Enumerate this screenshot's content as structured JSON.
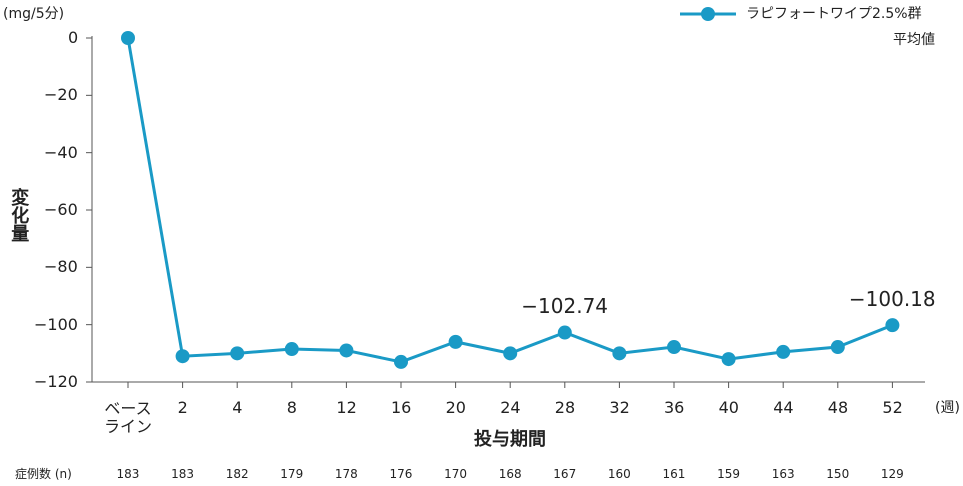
{
  "chart_data": {
    "type": "line",
    "y_unit": "(mg/5分)",
    "y_label": "変化量",
    "x_label": "投与期間",
    "x_unit": "(週)",
    "categories": [
      "ベース\nライン",
      "2",
      "4",
      "8",
      "12",
      "16",
      "20",
      "24",
      "28",
      "32",
      "36",
      "40",
      "44",
      "48",
      "52"
    ],
    "series": [
      {
        "name": "ラピフォートワイプ2.5%群",
        "color": "#1a9ac6",
        "values": [
          0,
          -111,
          -110,
          -108.5,
          -109,
          -113,
          -106,
          -110,
          -102.74,
          -110,
          -107.8,
          -112,
          -109.5,
          -107.8,
          -100.18
        ],
        "value_labels": [
          null,
          null,
          null,
          null,
          null,
          null,
          null,
          null,
          "−102.74",
          null,
          null,
          null,
          null,
          null,
          "−100.18"
        ]
      }
    ],
    "legend_note": "平均値",
    "legend_position": "top-right",
    "ylim": [
      -120,
      0
    ],
    "yticks": [
      0,
      {
        "value": -20,
        "label": "−20"
      },
      {
        "value": -40,
        "label": "−40"
      },
      {
        "value": -60,
        "label": "−60"
      },
      {
        "value": -80,
        "label": "−80"
      },
      {
        "value": -100,
        "label": "−100"
      },
      {
        "value": -120,
        "label": "−120"
      }
    ],
    "n_label": "症例数 (n)",
    "n_values": [
      183,
      183,
      182,
      179,
      178,
      176,
      170,
      168,
      167,
      160,
      161,
      159,
      163,
      150,
      129
    ]
  }
}
